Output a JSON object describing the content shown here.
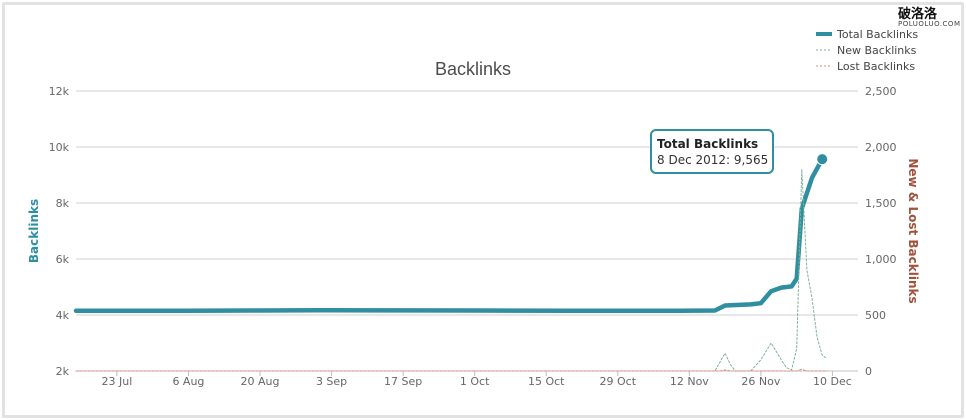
{
  "watermark": {
    "main": "破洛洛",
    "sub": "POLUOLUO.COM"
  },
  "chart_data": {
    "type": "line",
    "title": "Backlinks",
    "xlabel": "",
    "ylabel": "Backlinks",
    "y2label": "New & Lost Backlinks",
    "ylim": [
      2000,
      12000
    ],
    "y2lim": [
      0,
      2500
    ],
    "xlim": [
      "2012-07-15",
      "2012-12-15"
    ],
    "x_ticks": [
      {
        "date": "2012-07-23",
        "label": "23 Jul"
      },
      {
        "date": "2012-08-06",
        "label": "6 Aug"
      },
      {
        "date": "2012-08-20",
        "label": "20 Aug"
      },
      {
        "date": "2012-09-03",
        "label": "3 Sep"
      },
      {
        "date": "2012-09-17",
        "label": "17 Sep"
      },
      {
        "date": "2012-10-01",
        "label": "1 Oct"
      },
      {
        "date": "2012-10-15",
        "label": "15 Oct"
      },
      {
        "date": "2012-10-29",
        "label": "29 Oct"
      },
      {
        "date": "2012-11-12",
        "label": "12 Nov"
      },
      {
        "date": "2012-11-26",
        "label": "26 Nov"
      },
      {
        "date": "2012-12-10",
        "label": "10 Dec"
      }
    ],
    "y_ticks": [
      {
        "value": 2000,
        "label": "2k"
      },
      {
        "value": 4000,
        "label": "4k"
      },
      {
        "value": 6000,
        "label": "6k"
      },
      {
        "value": 8000,
        "label": "8k"
      },
      {
        "value": 10000,
        "label": "10k"
      },
      {
        "value": 12000,
        "label": "12k"
      }
    ],
    "y2_ticks": [
      {
        "value": 0,
        "label": "0"
      },
      {
        "value": 500,
        "label": "500"
      },
      {
        "value": 1000,
        "label": "1,000"
      },
      {
        "value": 1500,
        "label": "1,500"
      },
      {
        "value": 2000,
        "label": "2,000"
      },
      {
        "value": 2500,
        "label": "2,500"
      }
    ],
    "grid": true,
    "legend": "top-right",
    "series": [
      {
        "name": "Total Backlinks",
        "axis": "left",
        "color": "#2f8e9f",
        "style": "solid",
        "points": [
          [
            "2012-07-15",
            4150
          ],
          [
            "2012-08-05",
            4150
          ],
          [
            "2012-08-20",
            4160
          ],
          [
            "2012-09-01",
            4170
          ],
          [
            "2012-09-15",
            4165
          ],
          [
            "2012-10-01",
            4160
          ],
          [
            "2012-10-20",
            4155
          ],
          [
            "2012-11-10",
            4150
          ],
          [
            "2012-11-17",
            4160
          ],
          [
            "2012-11-19",
            4340
          ],
          [
            "2012-11-24",
            4380
          ],
          [
            "2012-11-26",
            4420
          ],
          [
            "2012-11-28",
            4850
          ],
          [
            "2012-11-30",
            4980
          ],
          [
            "2012-12-02",
            5020
          ],
          [
            "2012-12-03",
            5300
          ],
          [
            "2012-12-04",
            7800
          ],
          [
            "2012-12-06",
            8900
          ],
          [
            "2012-12-08",
            9565
          ]
        ]
      },
      {
        "name": "New Backlinks",
        "axis": "right",
        "color": "#7fb19c",
        "style": "dashed",
        "points": [
          [
            "2012-07-15",
            0
          ],
          [
            "2012-11-17",
            0
          ],
          [
            "2012-11-18",
            80
          ],
          [
            "2012-11-19",
            160
          ],
          [
            "2012-11-20",
            60
          ],
          [
            "2012-11-21",
            0
          ],
          [
            "2012-11-24",
            0
          ],
          [
            "2012-11-26",
            100
          ],
          [
            "2012-11-28",
            250
          ],
          [
            "2012-11-30",
            100
          ],
          [
            "2012-12-01",
            30
          ],
          [
            "2012-12-02",
            10
          ],
          [
            "2012-12-03",
            200
          ],
          [
            "2012-12-04",
            1800
          ],
          [
            "2012-12-05",
            900
          ],
          [
            "2012-12-06",
            650
          ],
          [
            "2012-12-07",
            300
          ],
          [
            "2012-12-08",
            140
          ],
          [
            "2012-12-09",
            110
          ]
        ]
      },
      {
        "name": "Lost Backlinks",
        "axis": "right",
        "color": "#e08a78",
        "style": "dashed",
        "points": [
          [
            "2012-07-15",
            0
          ],
          [
            "2012-11-18",
            0
          ],
          [
            "2012-11-19",
            10
          ],
          [
            "2012-11-20",
            0
          ],
          [
            "2012-12-03",
            0
          ],
          [
            "2012-12-04",
            15
          ],
          [
            "2012-12-05",
            0
          ],
          [
            "2012-12-09",
            0
          ]
        ]
      }
    ],
    "tooltip": {
      "title": "Total Backlinks",
      "date": "2012-12-08",
      "value": 9565,
      "text": "8 Dec 2012: 9,565"
    }
  }
}
